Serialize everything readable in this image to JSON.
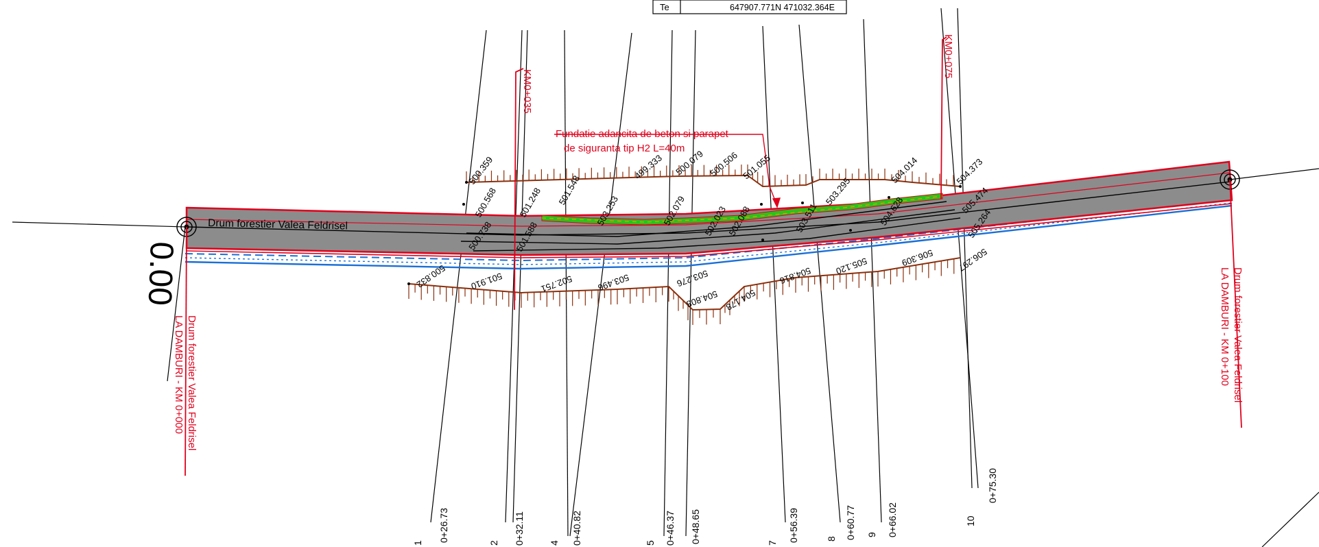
{
  "coord_table": {
    "label": "Te",
    "value": "647907.771N 471032.364E"
  },
  "road_name": "Drum forestier Valea Feldrisel",
  "start_chainage": "0.00",
  "annotation_lines": [
    "Fundatie adancita de beton si parapet",
    "de siguranta tip H2 L=40m"
  ],
  "km_markers": [
    "KM0+035",
    "KM0+075"
  ],
  "start_label_lines": [
    "Drum forestier Valea Feldrisel",
    "LA  DAMBURI - KM 0+000"
  ],
  "end_label_lines": [
    "Drum forestier Valea Feldrisel",
    "LA  DAMBURI - KM 0+100"
  ],
  "stations": [
    {
      "num": "1",
      "chainage": "0+26.73"
    },
    {
      "num": "2",
      "chainage": "0+32.11"
    },
    {
      "num": "4",
      "chainage": "0+40.82"
    },
    {
      "num": "5",
      "chainage": "0+46.37"
    },
    {
      "num": "",
      "chainage": "0+48.65"
    },
    {
      "num": "7",
      "chainage": "0+56.39"
    },
    {
      "num": "8",
      "chainage": "0+60.77"
    },
    {
      "num": "9",
      "chainage": "0+66.02"
    },
    {
      "num": "10",
      "chainage": "0+75.30"
    }
  ],
  "upper_elevations": [
    "500.359",
    "500.568",
    "501.248",
    "501.548",
    "499.333",
    "500.079",
    "500.506",
    "501.055",
    "503.295",
    "504.014",
    "504.373",
    "505.474"
  ],
  "road_elevations": [
    "500.738",
    "501.588",
    "502.079",
    "503.253",
    "502.023",
    "502.088",
    "503.511",
    "504.628",
    "505.264"
  ],
  "lower_elevations": [
    "500.832",
    "501.910",
    "502.751",
    "503.496",
    "503.276",
    "504.808",
    "504.178",
    "504.816",
    "505.120",
    "506.309",
    "506.297"
  ],
  "colors": {
    "road": "#8c8c8c",
    "edge": "#e0001b",
    "ditch": "#1a6fd6",
    "slope": "#8a2f0c",
    "barrier": "#2cc21a"
  }
}
